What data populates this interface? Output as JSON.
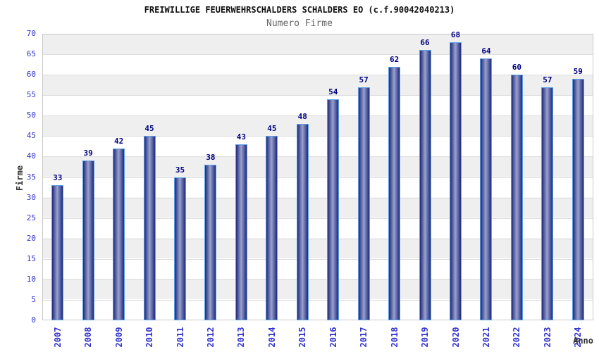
{
  "chart": {
    "title": "FREIWILLIGE FEUERWEHRSCHALDERS SCHALDERS EO (c.f.90042040213)",
    "subtitle": "Numero Firme",
    "ylabel": "Firme",
    "xlabel": "Anno"
  },
  "chart_data": {
    "type": "bar",
    "title": "FREIWILLIGE FEUERWEHRSCHALDERS SCHALDERS EO (c.f.90042040213)",
    "subtitle": "Numero Firme",
    "xlabel": "Anno",
    "ylabel": "Firme",
    "categories": [
      "2007",
      "2008",
      "2009",
      "2010",
      "2011",
      "2012",
      "2013",
      "2014",
      "2015",
      "2016",
      "2017",
      "2018",
      "2019",
      "2020",
      "2021",
      "2022",
      "2023",
      "2024"
    ],
    "values": [
      33,
      39,
      42,
      45,
      35,
      38,
      43,
      45,
      48,
      54,
      57,
      62,
      66,
      68,
      64,
      60,
      57,
      59
    ],
    "ylim": [
      0,
      70
    ],
    "ytick_step": 5,
    "grid": true,
    "legend": "none",
    "layout": {
      "alternating_bands": true,
      "x_labels_rotated_90": true
    },
    "colors": {
      "bar_edge": "#202a7a",
      "bar_center": "#99a2ce",
      "bar_border": "#5b9fe8",
      "tick_label": "#3232cd",
      "value_label": "#000080",
      "band_gray": "#efefef",
      "grid_line": "#dcdcdc",
      "plot_border": "#c9c9c9",
      "title": "#111111",
      "subtitle": "#666666",
      "axis_title": "#333333"
    }
  }
}
